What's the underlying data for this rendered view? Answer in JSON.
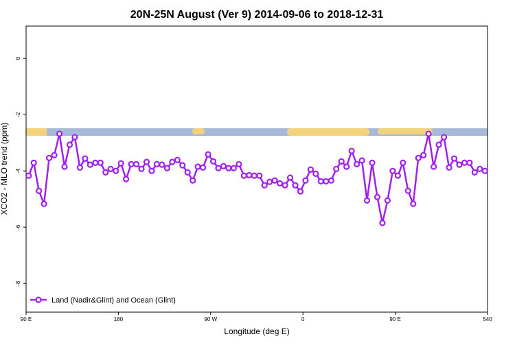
{
  "chart_data": {
    "type": "line",
    "title": "20N-25N August (Ver 9)   2014-09-06 to 2018-12-31",
    "x_label": "Longitude (deg E)",
    "y_label": "XCO2 - MLO trend (ppm)",
    "xlim": [
      90,
      540
    ],
    "xticks": [
      {
        "value": 90,
        "label": "90 E"
      },
      180,
      {
        "value": 270,
        "label": "90 W"
      },
      {
        "value": 360,
        "label": "0"
      },
      {
        "value": 450,
        "label": "90 E"
      },
      540
    ],
    "ylim": [
      -9.02,
      1.15
    ],
    "yticks": [
      0,
      -2,
      -4,
      -6,
      -8
    ],
    "legend": "bottom-left",
    "x": [
      92.5,
      97.5,
      102.5,
      107.5,
      112.5,
      117.5,
      122.5,
      127.5,
      132.5,
      137.5,
      142.5,
      147.5,
      152.5,
      157.5,
      162.5,
      167.5,
      172.5,
      177.5,
      182.5,
      187.5,
      192.5,
      197.5,
      202.5,
      207.5,
      212.5,
      217.5,
      222.5,
      227.5,
      232.5,
      237.5,
      242.5,
      247.5,
      252.5,
      257.5,
      262.5,
      267.5,
      272.5,
      277.5,
      282.5,
      287.5,
      292.5,
      297.5,
      302.5,
      307.5,
      312.5,
      317.5,
      322.5,
      327.5,
      332.5,
      337.5,
      342.5,
      347.5,
      352.5,
      357.5,
      362.5,
      367.5,
      372.5,
      377.5,
      382.5,
      387.5,
      392.5,
      397.5,
      402.5,
      407.5,
      412.5,
      417.5,
      422.5,
      427.5,
      432.5,
      437.5,
      442.5,
      447.5,
      452.5,
      457.5,
      462.5,
      467.5,
      472.5,
      477.5,
      482.5,
      487.5,
      492.5,
      497.5,
      502.5,
      507.5,
      512.5,
      517.5,
      522.5,
      527.5,
      532.5,
      537.5
    ],
    "series": [
      {
        "name": "Land (Nadir&Glint) and Ocean (Glint)",
        "color": "#a020f0",
        "values": [
          -4.17,
          -3.71,
          -4.71,
          -5.17,
          -3.54,
          -3.44,
          -2.68,
          -3.85,
          -3.07,
          -2.8,
          -3.88,
          -3.56,
          -3.78,
          -3.71,
          -3.71,
          -4.05,
          -3.93,
          -4.0,
          -3.73,
          -4.29,
          -3.76,
          -3.76,
          -3.93,
          -3.68,
          -4.0,
          -3.76,
          -3.78,
          -3.9,
          -3.68,
          -3.61,
          -3.8,
          -4.05,
          -4.34,
          -3.85,
          -3.88,
          -3.41,
          -3.66,
          -3.9,
          -3.83,
          -3.9,
          -3.9,
          -3.76,
          -4.17,
          -4.15,
          -4.17,
          -4.17,
          -4.51,
          -4.39,
          -4.34,
          -4.44,
          -4.51,
          -4.24,
          -4.51,
          -4.73,
          -4.34,
          -3.95,
          -4.1,
          -4.37,
          -4.37,
          -4.34,
          -3.93,
          -3.66,
          -3.85,
          -3.29,
          -3.76,
          -3.63,
          -5.05,
          -3.71,
          -4.93,
          -5.85,
          -5.05,
          -4.0,
          -4.17,
          -3.71,
          -4.71,
          -5.17,
          -3.54,
          -3.44,
          -2.68,
          -3.85,
          -3.07,
          -2.8,
          -3.88,
          -3.56,
          -3.78,
          -3.71,
          -3.71,
          -4.05,
          -3.93,
          -4.0
        ]
      }
    ]
  }
}
